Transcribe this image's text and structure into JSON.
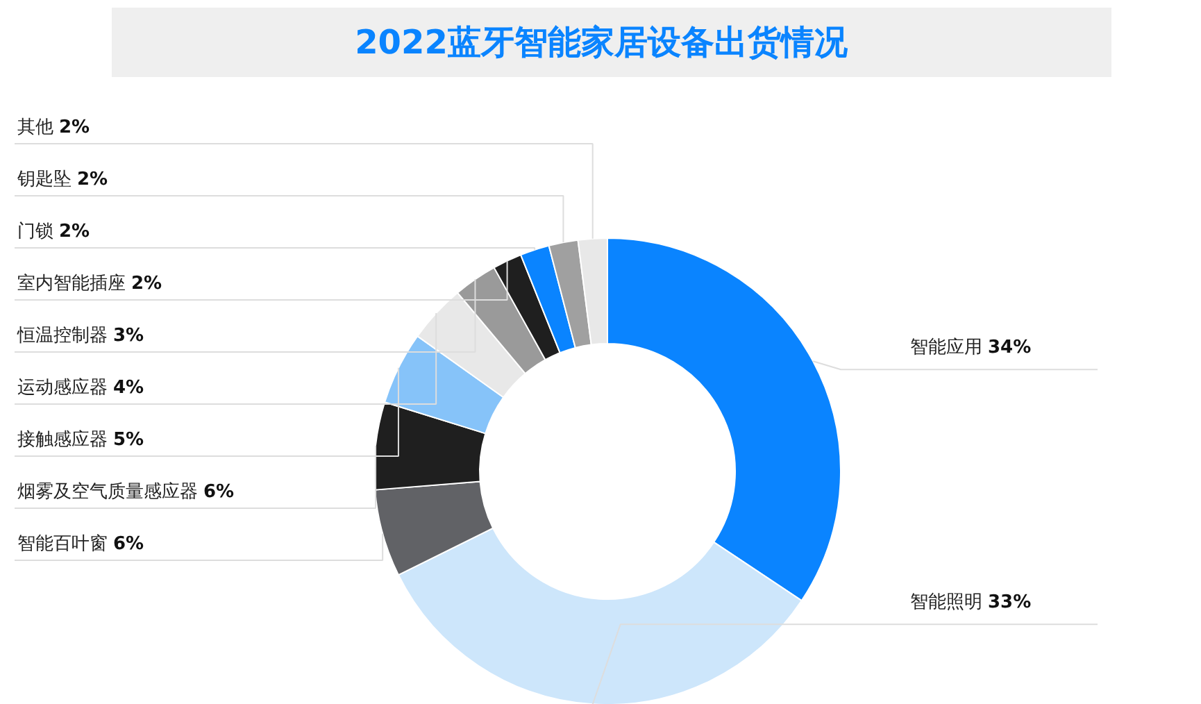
{
  "chart_data": {
    "type": "donut",
    "title": "2022蓝牙智能家居设备出货情况",
    "categories": [
      "智能应用",
      "智能照明",
      "智能百叶窗",
      "烟雾及空气质量感应器",
      "接触感应器",
      "运动感应器",
      "恒温控制器",
      "室内智能插座",
      "门锁",
      "钥匙坠",
      "其他"
    ],
    "values": [
      34,
      33,
      6,
      6,
      5,
      4,
      3,
      2,
      2,
      2,
      2
    ],
    "colors": [
      "#0a84ff",
      "#cde6fb",
      "#616266",
      "#1f1f1f",
      "#86c3f9",
      "#e8e8e8",
      "#9a9a9a",
      "#1f1f1f",
      "#0a84ff",
      "#a0a0a0",
      "#e8e8e8"
    ],
    "value_labels": [
      "34%",
      "33%",
      "6%",
      "6%",
      "5%",
      "4%",
      "3%",
      "2%",
      "2%",
      "2%",
      "2%"
    ]
  }
}
